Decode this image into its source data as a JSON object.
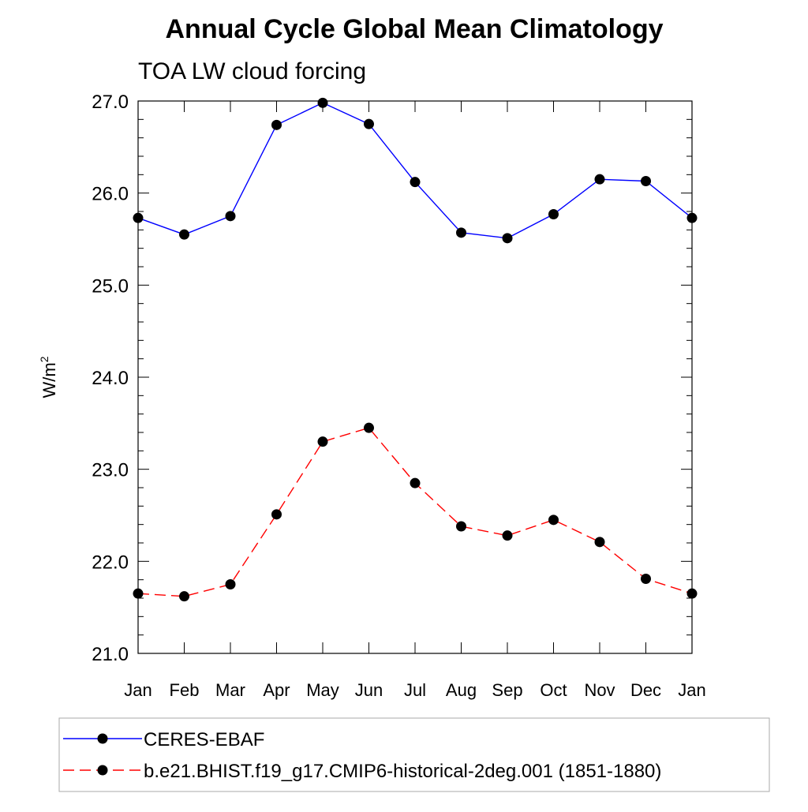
{
  "chart_data": {
    "type": "line",
    "title": "Annual Cycle Global Mean Climatology",
    "subtitle": "TOA LW cloud forcing",
    "xlabel": "",
    "ylabel": "W/m",
    "ylabel_sup": "2",
    "ylim": [
      21.0,
      27.0
    ],
    "yticks": [
      "21.0",
      "22.0",
      "23.0",
      "24.0",
      "25.0",
      "26.0",
      "27.0"
    ],
    "categories": [
      "Jan",
      "Feb",
      "Mar",
      "Apr",
      "May",
      "Jun",
      "Jul",
      "Aug",
      "Sep",
      "Oct",
      "Nov",
      "Dec",
      "Jan"
    ],
    "grid": false,
    "legend_position": "bottom",
    "series": [
      {
        "name": "CERES-EBAF",
        "color": "#0000ff",
        "line_style": "solid",
        "values": [
          25.73,
          25.55,
          25.75,
          26.74,
          26.98,
          26.75,
          26.12,
          25.57,
          25.51,
          25.77,
          26.15,
          26.13,
          25.73
        ]
      },
      {
        "name": "b.e21.BHIST.f19_g17.CMIP6-historical-2deg.001 (1851-1880)",
        "color": "#ff0000",
        "line_style": "dashed",
        "values": [
          21.65,
          21.62,
          21.75,
          22.51,
          23.3,
          23.45,
          22.85,
          22.38,
          22.28,
          22.45,
          22.21,
          21.81,
          21.65
        ]
      }
    ]
  }
}
